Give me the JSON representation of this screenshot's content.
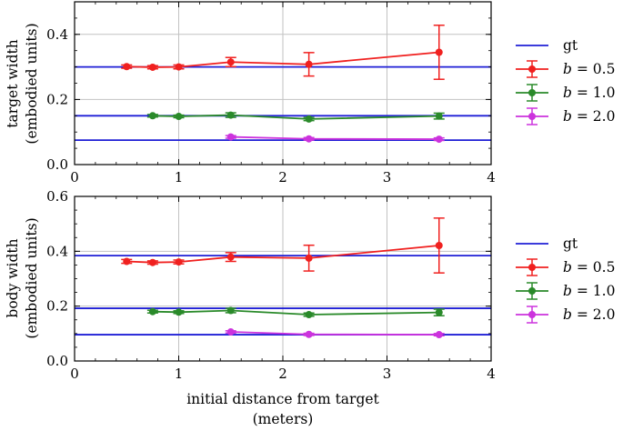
{
  "chart_data": [
    {
      "type": "line",
      "ylabel_line1": "target width",
      "ylabel_line2": "(embodied units)",
      "xlabel_line1": "",
      "xlabel_line2": "",
      "xlim": [
        0,
        4
      ],
      "ylim": [
        0,
        0.5
      ],
      "xticks": [
        0,
        1,
        2,
        3,
        4
      ],
      "xtick_labels": [
        "0",
        "1",
        "2",
        "3",
        "4"
      ],
      "yticks": [
        0,
        0.2,
        0.4
      ],
      "ytick_labels": [
        "0.0",
        "0.2",
        "0.4"
      ],
      "grid": true,
      "legend_position": "right",
      "gt": {
        "name": "gt",
        "color": "#1f1fd6",
        "values": [
          0.3,
          0.15,
          0.075
        ]
      },
      "series": [
        {
          "name": "b = 0.5",
          "name_var": "b",
          "name_rest": " = 0.5",
          "color": "#f0201f",
          "x": [
            0.5,
            0.75,
            1.0,
            1.5,
            2.25,
            3.5
          ],
          "y": [
            0.301,
            0.299,
            0.3,
            0.315,
            0.308,
            0.345
          ],
          "err": [
            0.005,
            0.005,
            0.006,
            0.014,
            0.036,
            0.083
          ]
        },
        {
          "name": "b = 1.0",
          "name_var": "b",
          "name_rest": " = 1.0",
          "color": "#2a8a2a",
          "x": [
            0.75,
            1.0,
            1.5,
            2.25,
            3.5
          ],
          "y": [
            0.15,
            0.148,
            0.152,
            0.14,
            0.149
          ],
          "err": [
            0.004,
            0.004,
            0.007,
            0.005,
            0.009
          ]
        },
        {
          "name": "b = 2.0",
          "name_var": "b",
          "name_rest": " = 2.0",
          "color": "#cc33dd",
          "x": [
            1.5,
            2.25,
            3.5
          ],
          "y": [
            0.085,
            0.079,
            0.078
          ],
          "err": [
            0.004,
            0.004,
            0.004
          ]
        }
      ]
    },
    {
      "type": "line",
      "ylabel_line1": "body width",
      "ylabel_line2": "(embodied units)",
      "xlabel_line1": "initial distance from target",
      "xlabel_line2": "(meters)",
      "xlim": [
        0,
        4
      ],
      "ylim": [
        0,
        0.6
      ],
      "xticks": [
        0,
        1,
        2,
        3,
        4
      ],
      "xtick_labels": [
        "0",
        "1",
        "2",
        "3",
        "4"
      ],
      "yticks": [
        0,
        0.2,
        0.4,
        0.6
      ],
      "ytick_labels": [
        "0.0",
        "0.2",
        "0.4",
        "0.6"
      ],
      "grid": true,
      "legend_position": "right",
      "gt": {
        "name": "gt",
        "color": "#1f1fd6",
        "values": [
          0.384,
          0.192,
          0.096
        ]
      },
      "series": [
        {
          "name": "b = 0.5",
          "name_var": "b",
          "name_rest": " = 0.5",
          "color": "#f0201f",
          "x": [
            0.5,
            0.75,
            1.0,
            1.5,
            2.25,
            3.5
          ],
          "y": [
            0.363,
            0.359,
            0.361,
            0.379,
            0.375,
            0.421
          ],
          "err": [
            0.007,
            0.006,
            0.007,
            0.016,
            0.047,
            0.1
          ]
        },
        {
          "name": "b = 1.0",
          "name_var": "b",
          "name_rest": " = 1.0",
          "color": "#2a8a2a",
          "x": [
            0.75,
            1.0,
            1.5,
            2.25,
            3.5
          ],
          "y": [
            0.18,
            0.178,
            0.184,
            0.169,
            0.177
          ],
          "err": [
            0.005,
            0.005,
            0.008,
            0.006,
            0.012
          ]
        },
        {
          "name": "b = 2.0",
          "name_var": "b",
          "name_rest": " = 2.0",
          "color": "#cc33dd",
          "x": [
            1.5,
            2.25,
            3.5
          ],
          "y": [
            0.106,
            0.097,
            0.096
          ],
          "err": [
            0.004,
            0.004,
            0.004
          ]
        }
      ]
    }
  ]
}
